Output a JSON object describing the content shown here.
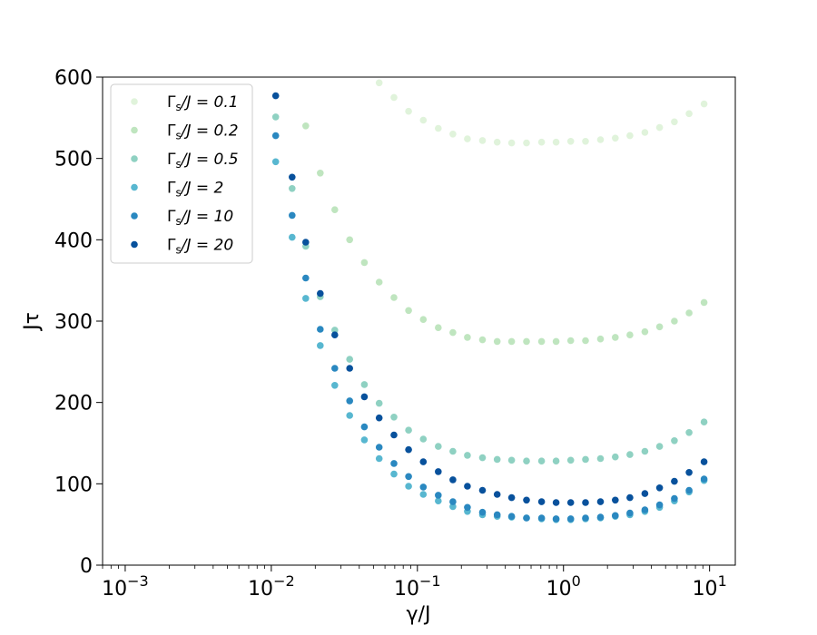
{
  "chart_data": {
    "type": "scatter",
    "xscale": "log",
    "xlabel": "γ/J",
    "ylabel": "Jτ",
    "xlim": [
      0.0007,
      15
    ],
    "ylim": [
      0,
      600
    ],
    "xticks": [
      {
        "value": 0.001,
        "base": "10",
        "exp": "−3"
      },
      {
        "value": 0.01,
        "base": "10",
        "exp": "−2"
      },
      {
        "value": 0.1,
        "base": "10",
        "exp": "−1"
      },
      {
        "value": 1,
        "base": "10",
        "exp": "0"
      },
      {
        "value": 10,
        "base": "10",
        "exp": "1"
      }
    ],
    "yticks": [
      "0",
      "100",
      "200",
      "300",
      "400",
      "500",
      "600"
    ],
    "legend_position": "upper-left",
    "grid": false,
    "x": [
      0.01072,
      0.01389,
      0.01721,
      0.02163,
      0.02719,
      0.03437,
      0.04334,
      0.05477,
      0.06912,
      0.08711,
      0.1098,
      0.1389,
      0.1749,
      0.2199,
      0.2788,
      0.3517,
      0.4417,
      0.5582,
      0.7085,
      0.8908,
      1.121,
      1.415,
      1.792,
      2.262,
      2.849,
      3.609,
      4.549,
      5.745,
      7.239,
      9.172
    ],
    "series": [
      {
        "name": "Γs/J = 0.1",
        "label_sym": "Γ",
        "label_sub": "s",
        "label_rest": "/J = 0.1",
        "color": "#e0f3db",
        "y": [
          null,
          null,
          null,
          null,
          null,
          null,
          null,
          593,
          575,
          558,
          547,
          537,
          530,
          524,
          522,
          520,
          519,
          519,
          520,
          520,
          521,
          521,
          523,
          525,
          528,
          532,
          538,
          545,
          555,
          567
        ]
      },
      {
        "name": "Γs/J = 0.2",
        "label_sym": "Γ",
        "label_sub": "s",
        "label_rest": "/J = 0.2",
        "color": "#bfe5bf",
        "y": [
          null,
          null,
          540,
          482,
          437,
          400,
          372,
          348,
          329,
          313,
          302,
          292,
          286,
          280,
          277,
          275,
          275,
          275,
          275,
          275,
          276,
          276,
          278,
          280,
          283,
          287,
          293,
          300,
          310,
          323
        ]
      },
      {
        "name": "Γs/J = 0.5",
        "label_sym": "Γ",
        "label_sub": "s",
        "label_rest": "/J = 0.5",
        "color": "#8fd1c2",
        "y": [
          551,
          463,
          392,
          330,
          289,
          253,
          222,
          199,
          182,
          166,
          155,
          146,
          140,
          135,
          132,
          130,
          129,
          128,
          128,
          128,
          129,
          130,
          131,
          133,
          136,
          140,
          146,
          153,
          163,
          176
        ]
      },
      {
        "name": "Γs/J = 2",
        "label_sym": "Γ",
        "label_sub": "s",
        "label_rest": "/J = 2",
        "color": "#58b7d0",
        "y": [
          496,
          403,
          328,
          270,
          221,
          184,
          154,
          131,
          112,
          97,
          87,
          79,
          72,
          66,
          62,
          60,
          59,
          58,
          57,
          56,
          56,
          57,
          58,
          60,
          62,
          66,
          71,
          79,
          90,
          104
        ]
      },
      {
        "name": "Γs/J = 10",
        "label_sym": "Γ",
        "label_sub": "s",
        "label_rest": "/J = 10",
        "color": "#2a88c0",
        "y": [
          528,
          430,
          353,
          290,
          242,
          202,
          170,
          145,
          125,
          109,
          96,
          86,
          78,
          71,
          65,
          62,
          60,
          58,
          58,
          57,
          57,
          58,
          59,
          61,
          64,
          68,
          74,
          82,
          92,
          106
        ]
      },
      {
        "name": "Γs/J = 20",
        "label_sym": "Γ",
        "label_sub": "s",
        "label_rest": "/J = 20",
        "color": "#08519c",
        "y": [
          577,
          477,
          397,
          334,
          283,
          242,
          207,
          181,
          160,
          142,
          127,
          115,
          105,
          97,
          92,
          87,
          83,
          80,
          78,
          77,
          77,
          77,
          78,
          80,
          83,
          88,
          95,
          103,
          114,
          127
        ]
      }
    ]
  }
}
